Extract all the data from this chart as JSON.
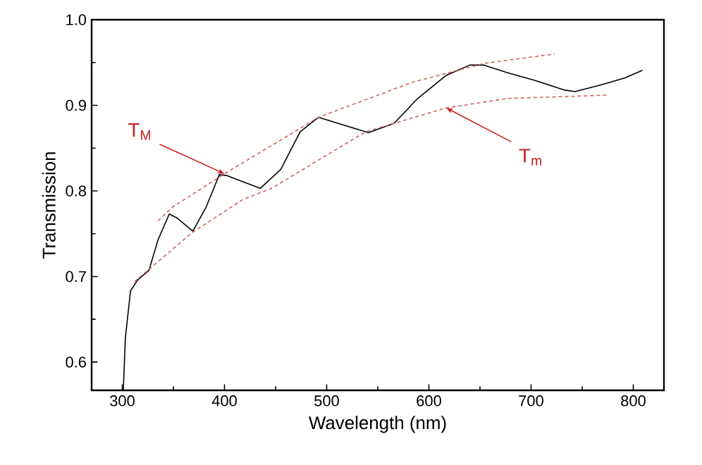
{
  "chart_data": {
    "type": "line",
    "xlabel": "Wavelength (nm)",
    "ylabel": "Transmission",
    "xlim": [
      270,
      830
    ],
    "ylim": [
      0.567,
      1.0
    ],
    "xticks": [
      300,
      400,
      500,
      600,
      700,
      800
    ],
    "yticks": [
      0.6,
      0.7,
      0.8,
      0.9,
      {
        "value": 1.0,
        "label": "1.0"
      }
    ],
    "grid": false,
    "marker": "none",
    "series": [
      {
        "color": "#000000",
        "line_style": "solid",
        "x": [
          301,
          303,
          308,
          315,
          326,
          335,
          346,
          354,
          369,
          382,
          395,
          402,
          435,
          455,
          474,
          492,
          511,
          541,
          566,
          589,
          617,
          640,
          654,
          677,
          704,
          732,
          743,
          769,
          792,
          809
        ],
        "values": [
          0.567,
          0.628,
          0.683,
          0.696,
          0.707,
          0.743,
          0.773,
          0.768,
          0.753,
          0.781,
          0.819,
          0.818,
          0.803,
          0.825,
          0.869,
          0.886,
          0.879,
          0.868,
          0.879,
          0.908,
          0.935,
          0.947,
          0.947,
          0.938,
          0.929,
          0.918,
          0.916,
          0.924,
          0.932,
          0.941
        ]
      },
      {
        "color": "#d06060",
        "line_style": "dashed",
        "x": [
          335,
          349,
          400,
          492,
          584,
          654,
          723
        ],
        "values": [
          0.765,
          0.781,
          0.82,
          0.886,
          0.927,
          0.949,
          0.96
        ]
      },
      {
        "color": "#d06060",
        "line_style": "dashed",
        "x": [
          312,
          368,
          418,
          446,
          538,
          617,
          677,
          776
        ],
        "values": [
          0.694,
          0.751,
          0.79,
          0.803,
          0.869,
          0.897,
          0.908,
          0.912
        ]
      }
    ],
    "annotations": [
      {
        "text": "T$_{M}$",
        "x": 400,
        "y": 0.82
      },
      {
        "text": "T$_{m}$",
        "x": 617,
        "y": 0.897
      }
    ]
  }
}
